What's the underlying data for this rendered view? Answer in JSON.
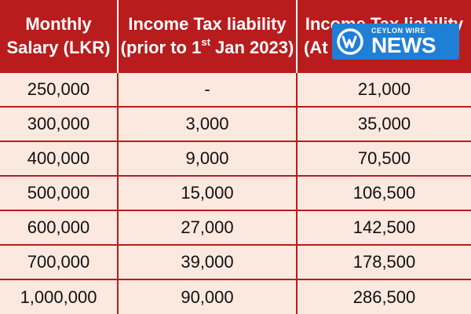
{
  "table": {
    "headers": {
      "salary": [
        "Monthly",
        "Salary (LKR)"
      ],
      "prior": {
        "line1": "Income Tax liability",
        "line2_pre": "(prior to 1",
        "line2_sup": "st",
        "line2_post": " Jan 2023)"
      },
      "after": [
        "Income Tax liability",
        "(At"
      ]
    },
    "rows": [
      [
        "250,000",
        "-",
        "21,000"
      ],
      [
        "300,000",
        "3,000",
        "35,000"
      ],
      [
        "400,000",
        "9,000",
        "70,500"
      ],
      [
        "500,000",
        "15,000",
        "106,500"
      ],
      [
        "600,000",
        "27,000",
        "142,500"
      ],
      [
        "700,000",
        "39,000",
        "178,500"
      ],
      [
        "1,000,000",
        "90,000",
        "286,500"
      ]
    ]
  },
  "watermark": {
    "brand_top": "CEYLON WIRE",
    "brand_main": "NEWS",
    "logo_icon": "cw-logo-icon",
    "color": "#1f7fd6"
  },
  "colors": {
    "header_bg": "#b91c1c",
    "row_bg": "#fbe9df",
    "border": "#b91c1c"
  }
}
